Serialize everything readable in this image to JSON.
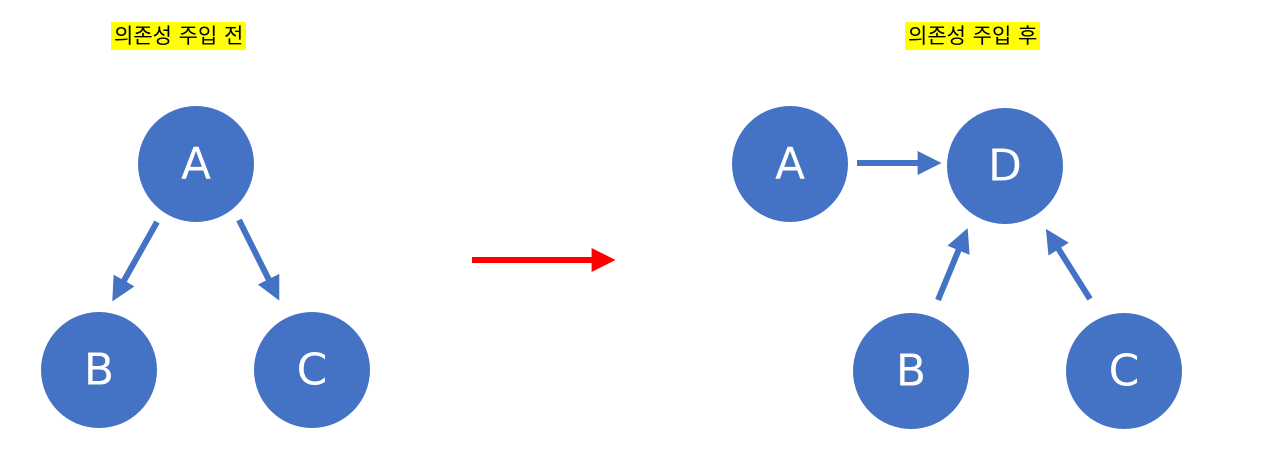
{
  "labels": {
    "before": "의존성 주입 전",
    "after": "의존성 주입 후"
  },
  "colors": {
    "node": "#4472c4",
    "node_text": "#ffffff",
    "edge": "#4472c4",
    "transition_arrow": "#ff0000",
    "label_highlight": "#ffff00"
  },
  "before": {
    "nodes": [
      {
        "id": "A",
        "label": "A"
      },
      {
        "id": "B",
        "label": "B"
      },
      {
        "id": "C",
        "label": "C"
      }
    ],
    "edges": [
      {
        "from": "A",
        "to": "B"
      },
      {
        "from": "A",
        "to": "C"
      }
    ]
  },
  "after": {
    "nodes": [
      {
        "id": "A",
        "label": "A"
      },
      {
        "id": "D",
        "label": "D"
      },
      {
        "id": "B",
        "label": "B"
      },
      {
        "id": "C",
        "label": "C"
      }
    ],
    "edges": [
      {
        "from": "A",
        "to": "D"
      },
      {
        "from": "B",
        "to": "D"
      },
      {
        "from": "C",
        "to": "D"
      }
    ]
  }
}
